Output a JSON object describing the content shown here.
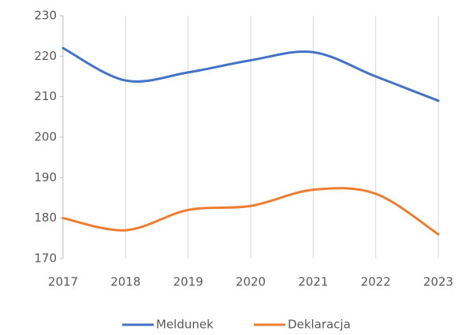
{
  "chart_data": {
    "type": "line",
    "x": [
      2017,
      2018,
      2019,
      2020,
      2021,
      2022,
      2023
    ],
    "series": [
      {
        "name": "Meldunek",
        "color": "#4472c4",
        "values": [
          222,
          214,
          216,
          219,
          221,
          215,
          209
        ]
      },
      {
        "name": "Deklaracja",
        "color": "#ed7d31",
        "values": [
          180,
          177,
          182,
          183,
          187,
          186,
          176
        ]
      }
    ],
    "xlim": [
      2017,
      2023
    ],
    "xticks": [
      2017,
      2018,
      2019,
      2020,
      2021,
      2022,
      2023
    ],
    "ylim": [
      170,
      230
    ],
    "yticks": [
      170,
      180,
      190,
      200,
      210,
      220,
      230
    ],
    "grid": true,
    "smooth": true,
    "legend": "bottom"
  }
}
